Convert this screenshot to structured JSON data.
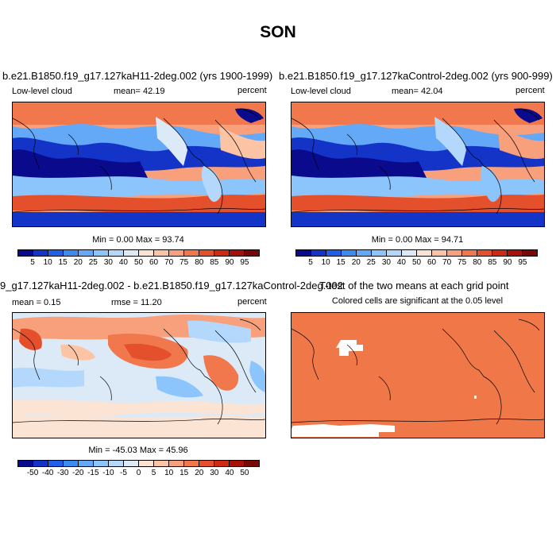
{
  "figure": {
    "title": "SON"
  },
  "panel1": {
    "title": "b.e21.B1850.f19_g17.127kaH11-2deg.002 (yrs 1900-1999)",
    "variable": "Low-level cloud",
    "mean": "mean=  42.19",
    "units": "percent",
    "minmax": "Min =   0.00 Max =  93.74"
  },
  "panel2": {
    "title": "b.e21.B1850.f19_g17.127kaControl-2deg.002 (yrs 900-999)",
    "variable": "Low-level cloud",
    "mean": "mean=  42.04",
    "units": "percent",
    "minmax": "Min =   0.00 Max =  94.71"
  },
  "panel3": {
    "title": "9_g17.127kaH11-2deg.002 - b.e21.B1850.f19_g17.127kaControl-2deg.002",
    "mean": "mean =   0.15",
    "rmse": "rmse =  11.20",
    "units": "percent",
    "minmax": "Min = -45.03 Max =  45.96"
  },
  "panel4": {
    "title": "T-test of the two means at each grid point",
    "subtitle": "Colored cells are significant at the 0.05 level"
  },
  "colorbar_abs": {
    "labels": [
      "5",
      "10",
      "15",
      "20",
      "25",
      "30",
      "40",
      "50",
      "60",
      "70",
      "75",
      "80",
      "85",
      "90",
      "95"
    ],
    "colors": [
      "#0a0a8c",
      "#1434c8",
      "#2060e6",
      "#3c8cf0",
      "#64a8f8",
      "#8cc4fc",
      "#b4d8fc",
      "#dceaf8",
      "#fce4d4",
      "#fcc4a4",
      "#f8a07c",
      "#f0784c",
      "#e4502c",
      "#cc2a14",
      "#a8100a",
      "#780808"
    ]
  },
  "colorbar_diff": {
    "labels": [
      "-50",
      "-40",
      "-30",
      "-20",
      "-15",
      "-10",
      "-5",
      "0",
      "5",
      "10",
      "15",
      "20",
      "30",
      "40",
      "50"
    ],
    "colors": [
      "#0a0a8c",
      "#1434c8",
      "#2060e6",
      "#3c8cf0",
      "#64a8f8",
      "#8cc4fc",
      "#b4d8fc",
      "#dceaf8",
      "#fce4d4",
      "#fcc4a4",
      "#f8a07c",
      "#f0784c",
      "#e4502c",
      "#cc2a14",
      "#a8100a",
      "#780808"
    ]
  }
}
